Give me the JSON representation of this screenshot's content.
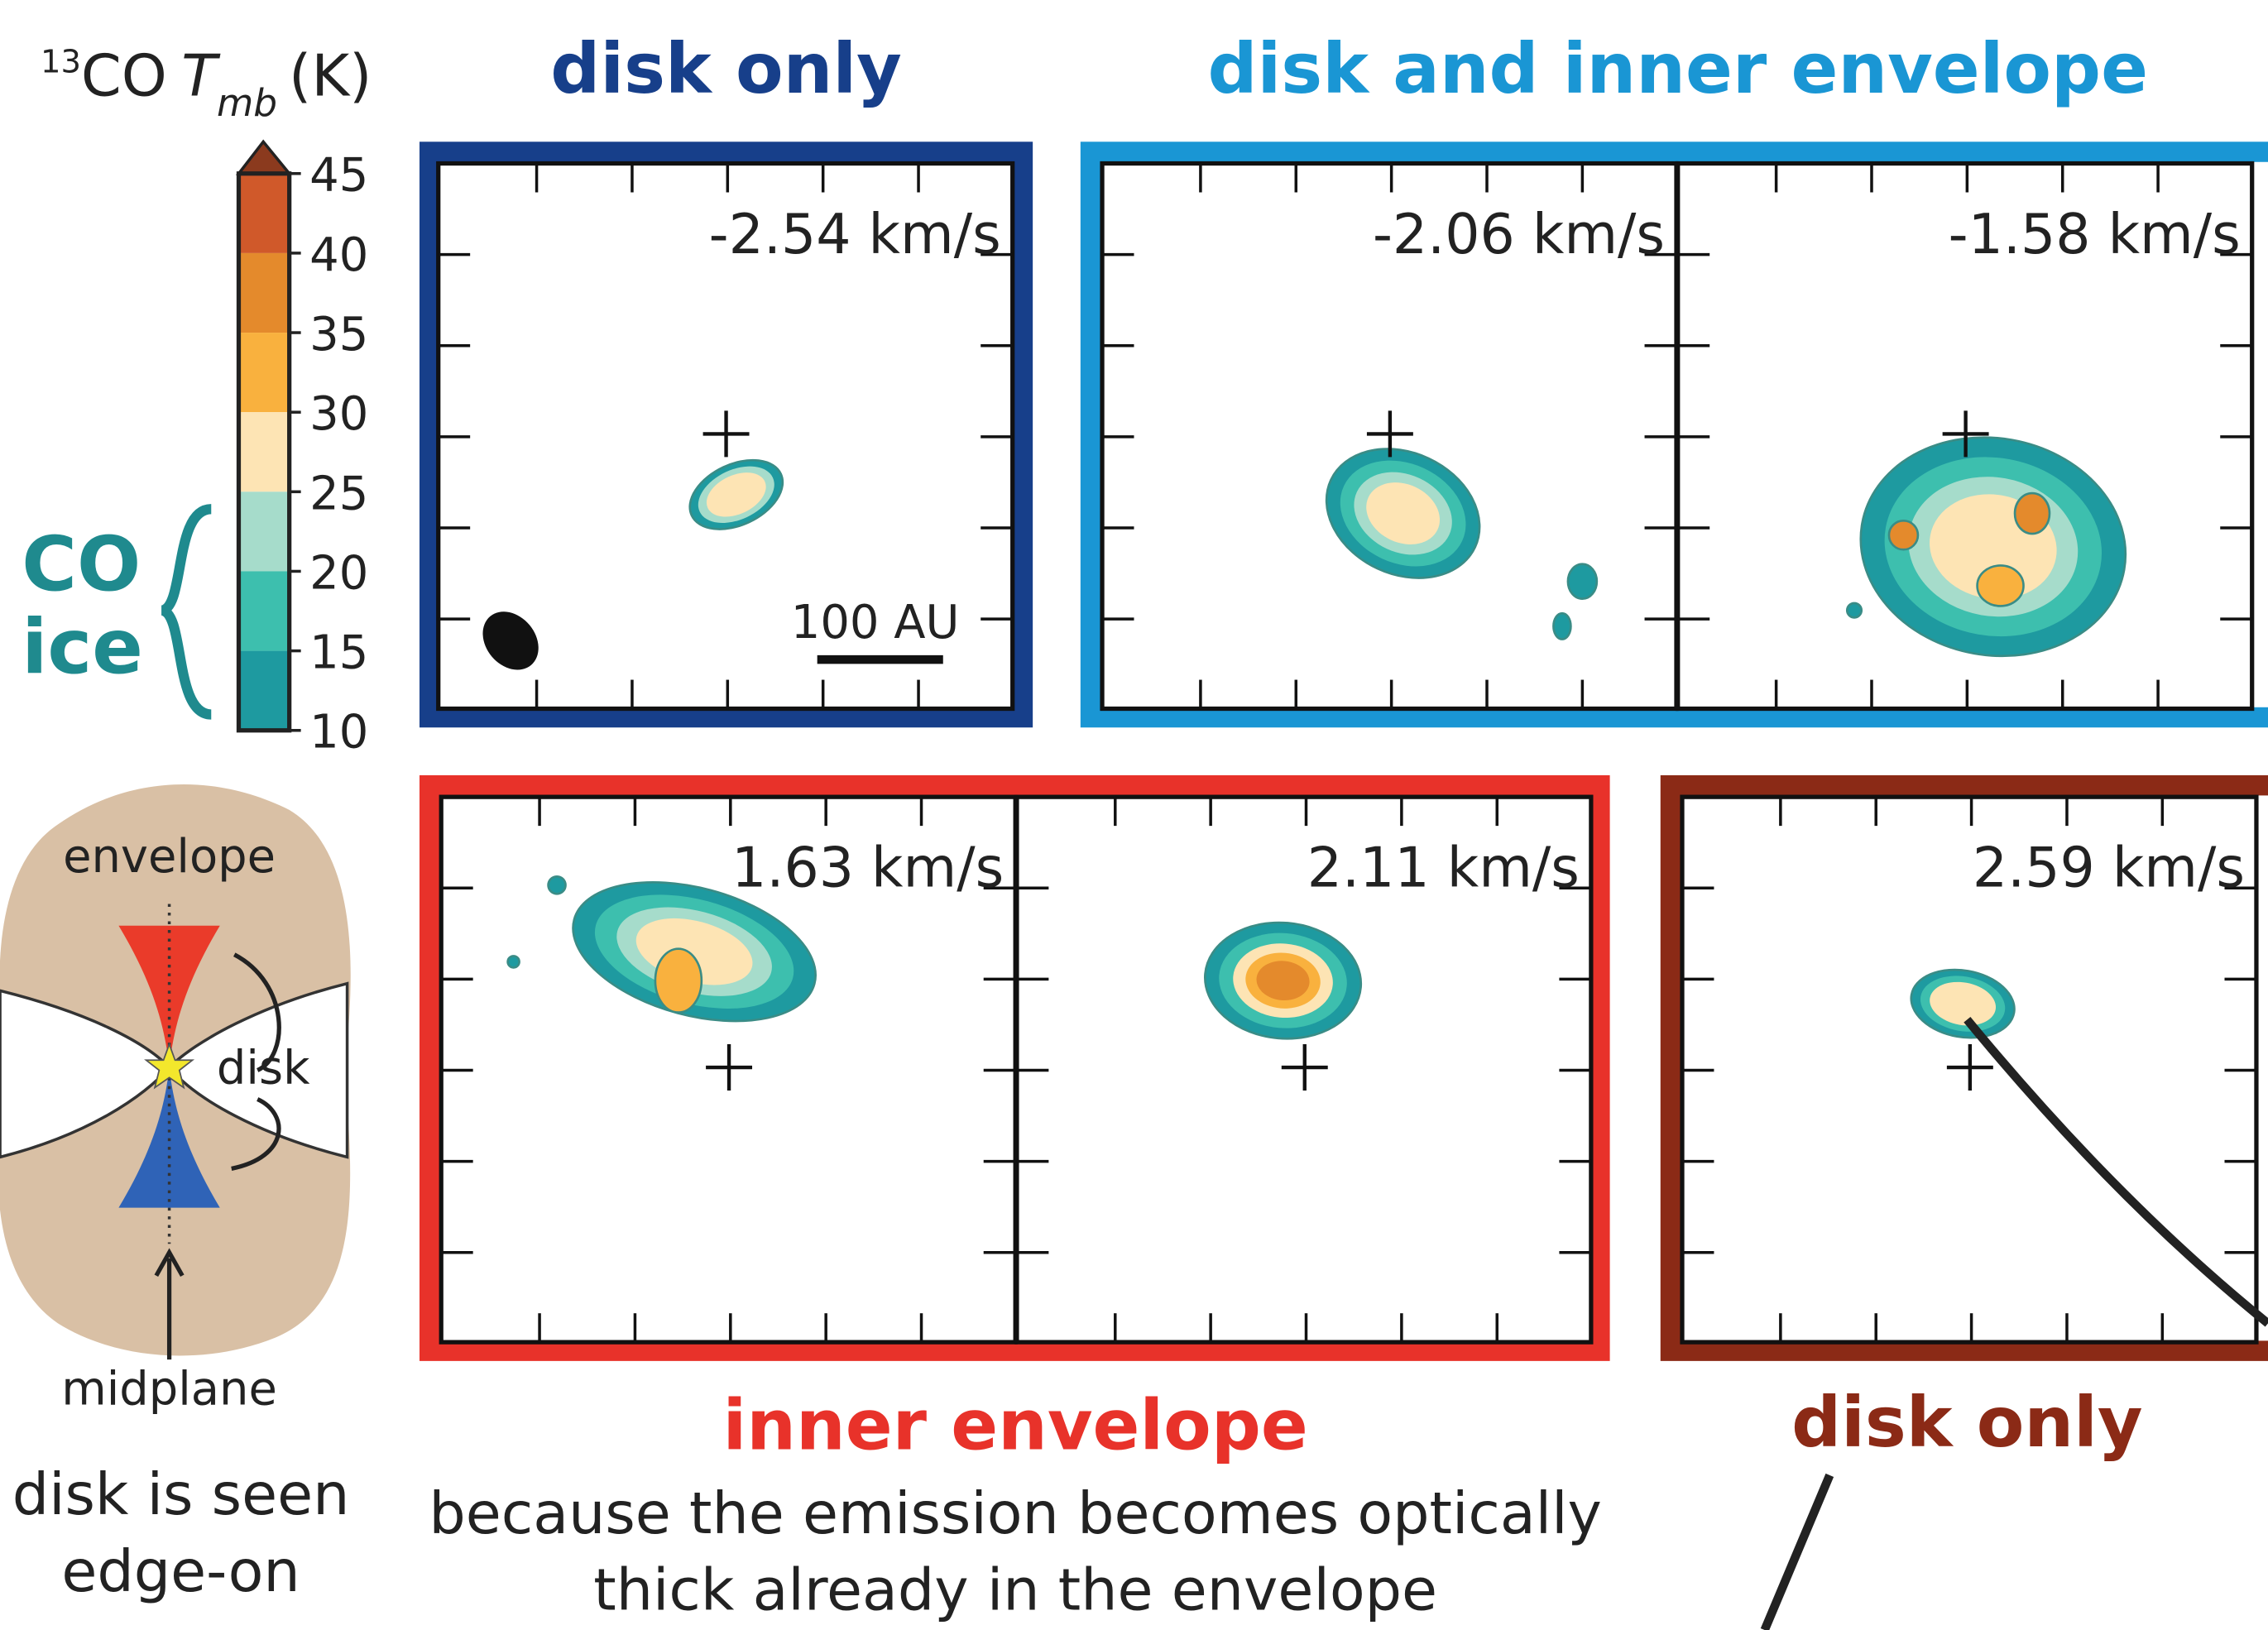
{
  "colorbar": {
    "title_sup": "13",
    "title_main": "CO",
    "title_italic": "T",
    "title_sub": "mb",
    "title_unit": "(K)",
    "ticks": [
      45,
      40,
      35,
      30,
      25,
      20,
      15,
      10
    ],
    "colors": [
      "#1e9aa0",
      "#3dbfae",
      "#a6dccb",
      "#fde4b4",
      "#f9b13e",
      "#e48a2c",
      "#d0592a",
      "#8b3a1e"
    ]
  },
  "co_ice": [
    "CO",
    "ice"
  ],
  "groups": [
    {
      "label": "disk only",
      "color": "#173f8a"
    },
    {
      "label": "disk and inner envelope",
      "color": "#1a96d4"
    },
    {
      "label": "inner envelope",
      "color": "#e8322a"
    },
    {
      "label": "disk only",
      "color": "#8b2a16"
    }
  ],
  "panels": [
    {
      "velocity": "-2.54 km/s"
    },
    {
      "velocity": "-2.06 km/s"
    },
    {
      "velocity": "-1.58 km/s"
    },
    {
      "velocity": "1.63 km/s"
    },
    {
      "velocity": "2.11 km/s"
    },
    {
      "velocity": "2.59 km/s"
    }
  ],
  "scale_bar": "100 AU",
  "diagram": {
    "envelope": "envelope",
    "disk": "disk",
    "midplane": "midplane",
    "caption": [
      "disk is seen",
      "edge-on"
    ]
  },
  "explanation": [
    "because the emission becomes optically",
    "thick already in the envelope"
  ]
}
